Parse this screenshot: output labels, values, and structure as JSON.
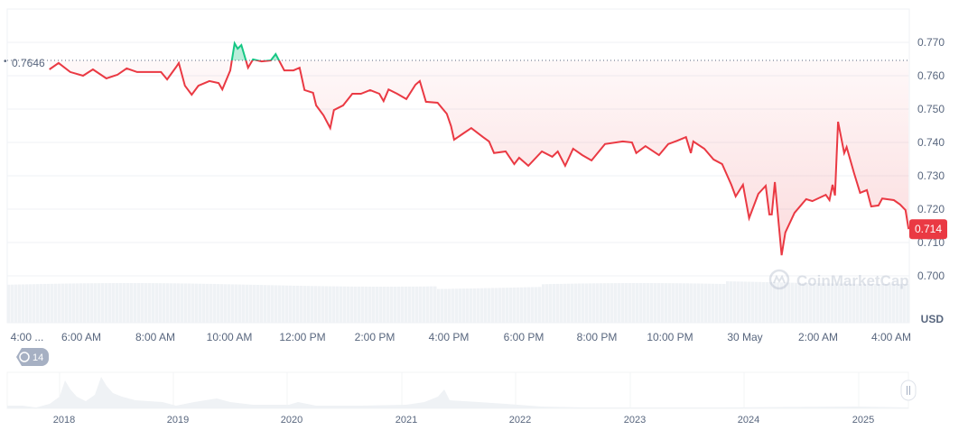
{
  "chart_data": {
    "type": "line",
    "currency_label": "USD",
    "baseline_label": "0.7646",
    "baseline_value": 0.7646,
    "current_price_label": "0.714",
    "current_price": 0.714,
    "ylim": [
      0.695,
      0.779
    ],
    "y_ticks": [
      "0.770",
      "0.760",
      "0.750",
      "0.740",
      "0.730",
      "0.720",
      "0.710",
      "0.700"
    ],
    "x_ticks": [
      "4:00 ...",
      "6:00 AM",
      "8:00 AM",
      "10:00 AM",
      "12:00 PM",
      "2:00 PM",
      "4:00 PM",
      "6:00 PM",
      "8:00 PM",
      "10:00 PM",
      "30 May",
      "2:00 AM",
      "4:00 AM"
    ],
    "grid": true,
    "colors": {
      "down": "#ea3943",
      "up": "#16c784",
      "baseline": "#58667e",
      "volume": "#eff2f5"
    },
    "watermark": "CoinMarketCap",
    "events_badge": "14",
    "navigator_ticks": [
      "2018",
      "2019",
      "2020",
      "2021",
      "2022",
      "2023",
      "2024",
      "2025"
    ],
    "series": [
      {
        "x": [
          "05:08",
          "05:23",
          "05:42",
          "06:03",
          "06:19",
          "06:41",
          "06:59",
          "07:14",
          "07:31",
          "07:50",
          "08:10",
          "08:20",
          "08:35",
          "08:39",
          "08:49",
          "09:00",
          "09:11",
          "09:29",
          "09:44",
          "09:50",
          "10:03",
          "10:10",
          "10:15",
          "10:21",
          "10:32",
          "10:40",
          "10:54",
          "11:09",
          "11:17",
          "11:31",
          "11:46",
          "11:56",
          "12:04",
          "12:18",
          "12:23",
          "12:35",
          "12:46",
          "12:52",
          "13:07",
          "13:22",
          "13:36",
          "13:51",
          "14:06",
          "14:13",
          "14:21",
          "14:35",
          "14:50",
          "15:05",
          "15:12",
          "15:22",
          "15:41",
          "15:56",
          "16:03",
          "16:08",
          "16:23",
          "16:36",
          "16:55",
          "17:05",
          "17:13",
          "17:32",
          "17:46",
          "17:54",
          "18:09",
          "18:31",
          "18:48",
          "18:57",
          "19:09",
          "19:22",
          "19:37",
          "19:52",
          "20:14",
          "20:43",
          "20:58",
          "21:05",
          "21:20",
          "21:42",
          "21:57",
          "22:12",
          "22:26",
          "22:34",
          "22:38",
          "22:56",
          "23:11",
          "23:25",
          "23:40",
          "23:47",
          "23:59",
          "00:09",
          "00:24",
          "00:36",
          "00:42",
          "00:46",
          "00:51",
          "01:02",
          "01:08",
          "01:23",
          "01:42",
          "01:52",
          "02:14",
          "02:20",
          "02:25",
          "02:29",
          "02:34",
          "02:44",
          "02:48",
          "03:00",
          "03:10",
          "03:21",
          "03:28",
          "03:40",
          "03:46",
          "04:05",
          "04:15",
          "04:24",
          "04:29"
        ],
        "y": [
          0.7619,
          0.7638,
          0.7611,
          0.76,
          0.7619,
          0.7592,
          0.7603,
          0.7622,
          0.7611,
          0.7611,
          0.7611,
          0.7589,
          0.7627,
          0.7638,
          0.757,
          0.7543,
          0.757,
          0.7584,
          0.7578,
          0.7559,
          0.7616,
          0.7697,
          0.7681,
          0.7692,
          0.7624,
          0.7649,
          0.7643,
          0.7646,
          0.7665,
          0.7616,
          0.7616,
          0.7624,
          0.7557,
          0.7549,
          0.7511,
          0.7481,
          0.7443,
          0.7497,
          0.7511,
          0.7546,
          0.7546,
          0.7557,
          0.7546,
          0.7524,
          0.7559,
          0.7546,
          0.753,
          0.7573,
          0.7584,
          0.7522,
          0.7519,
          0.7486,
          0.7449,
          0.7408,
          0.7427,
          0.7443,
          0.7416,
          0.7403,
          0.7368,
          0.7373,
          0.7335,
          0.7354,
          0.733,
          0.7373,
          0.7357,
          0.7373,
          0.733,
          0.7381,
          0.7362,
          0.7346,
          0.7395,
          0.7403,
          0.74,
          0.7368,
          0.7389,
          0.7362,
          0.7395,
          0.7405,
          0.7416,
          0.7368,
          0.7403,
          0.7381,
          0.7349,
          0.7335,
          0.7273,
          0.7238,
          0.7273,
          0.7173,
          0.7246,
          0.727,
          0.7184,
          0.7184,
          0.7281,
          0.7062,
          0.713,
          0.7189,
          0.723,
          0.7224,
          0.7243,
          0.7227,
          0.7273,
          0.7241,
          0.7462,
          0.7368,
          0.7386,
          0.7308,
          0.7249,
          0.7257,
          0.7208,
          0.7211,
          0.7232,
          0.7227,
          0.7214,
          0.7197,
          0.714
        ]
      }
    ]
  }
}
